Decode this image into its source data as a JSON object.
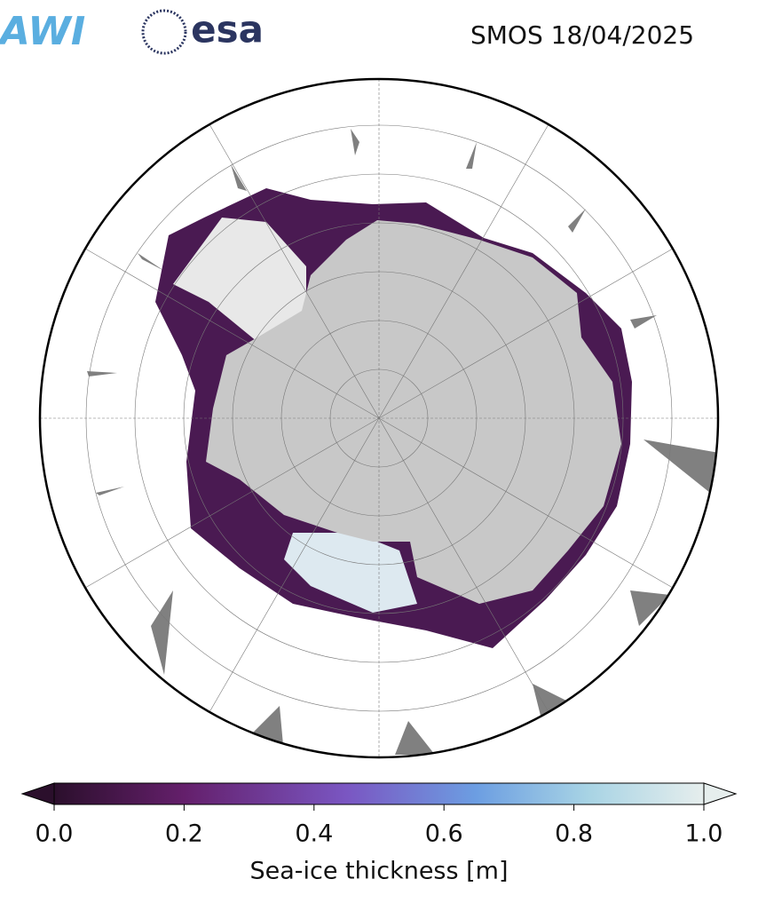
{
  "header": {
    "logos": [
      "AWI",
      "esa"
    ],
    "title": "SMOS 18/04/2025"
  },
  "colorbar": {
    "label": "Sea-ice thickness [m]",
    "lim": [
      0,
      1
    ],
    "ticks": [
      {
        "value": 0,
        "label": "0.0"
      },
      0.2,
      0.4,
      0.6,
      0.8,
      {
        "value": 1,
        "label": "1.0"
      }
    ]
  }
}
